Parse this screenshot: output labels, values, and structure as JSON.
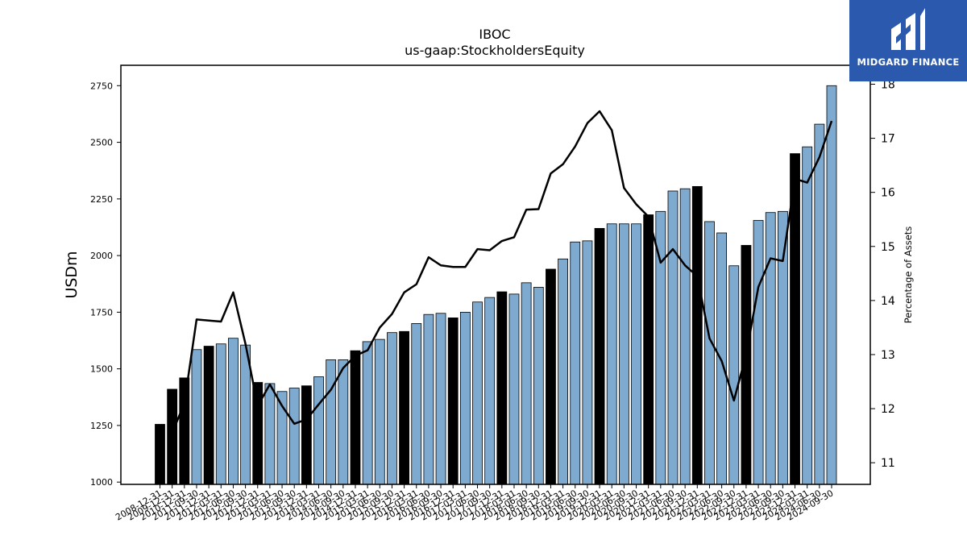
{
  "chart_data": {
    "type": "bar",
    "title": "IBOC",
    "subtitle": "us-gaap:StockholdersEquity",
    "ylabel": "USDm",
    "y2label": "Percentage of Assets",
    "ylim": [
      990,
      2840
    ],
    "y2lim": [
      10.6,
      18.35
    ],
    "yticks": [
      1000,
      1250,
      1500,
      1750,
      2000,
      2250,
      2500,
      2750
    ],
    "y2ticks": [
      11,
      12,
      13,
      14,
      15,
      16,
      17,
      18
    ],
    "colors": {
      "bar": "#7eaad0",
      "bar_highlight": "#000000",
      "line": "#000000",
      "edge": "#000000"
    },
    "series": [
      {
        "kind": "bar",
        "x": [
          "2008-12-31",
          "2009-12-31",
          "2010-12-31",
          "2011-09-30",
          "2011-12-31",
          "2012-03-31",
          "2012-06-30",
          "2012-09-30",
          "2012-12-31",
          "2013-03-31",
          "2013-06-30",
          "2013-09-30",
          "2013-12-31",
          "2014-03-31",
          "2014-06-30",
          "2014-09-30",
          "2014-12-31",
          "2015-03-31",
          "2015-06-30",
          "2015-09-30",
          "2015-12-31",
          "2016-03-31",
          "2016-06-30",
          "2016-09-30",
          "2016-12-31",
          "2017-03-31",
          "2017-06-30",
          "2017-09-30",
          "2017-12-31",
          "2018-03-31",
          "2018-06-30",
          "2018-09-30",
          "2018-12-31",
          "2019-03-31",
          "2019-06-30",
          "2019-09-30",
          "2019-12-31",
          "2020-03-31",
          "2020-06-30",
          "2020-09-30",
          "2020-12-31",
          "2021-03-31",
          "2021-06-30",
          "2021-09-30",
          "2021-12-31",
          "2022-03-31",
          "2022-06-30",
          "2022-09-30",
          "2022-12-31",
          "2023-03-31",
          "2023-06-30",
          "2023-09-30",
          "2023-12-31",
          "2024-03-31",
          "2024-06-30",
          "2024-09-30"
        ],
        "values": [
          1255,
          1410,
          1460,
          1585,
          1600,
          1610,
          1635,
          1605,
          1440,
          1435,
          1400,
          1415,
          1425,
          1465,
          1540,
          1540,
          1580,
          1620,
          1630,
          1660,
          1665,
          1700,
          1740,
          1745,
          1725,
          1750,
          1795,
          1815,
          1840,
          1830,
          1880,
          1860,
          1940,
          1985,
          2060,
          2065,
          2120,
          2140,
          2140,
          2140,
          2180,
          2195,
          2285,
          2295,
          2305,
          2150,
          2100,
          1955,
          2045,
          2155,
          2190,
          2195,
          2450,
          2480,
          2580,
          2750
        ],
        "highlight": [
          true,
          true,
          true,
          false,
          true,
          false,
          false,
          false,
          true,
          false,
          false,
          false,
          true,
          false,
          false,
          false,
          true,
          false,
          false,
          false,
          true,
          false,
          false,
          false,
          true,
          false,
          false,
          false,
          true,
          false,
          false,
          false,
          true,
          false,
          false,
          false,
          true,
          false,
          false,
          false,
          true,
          false,
          false,
          false,
          true,
          false,
          false,
          false,
          true,
          false,
          false,
          false,
          true,
          false,
          false,
          false
        ]
      },
      {
        "kind": "line",
        "axis": "right",
        "x": [
          "2009-12-31",
          "2010-12-31",
          "2011-09-30",
          "2011-12-31",
          "2012-03-31",
          "2012-06-30",
          "2012-09-30",
          "2012-12-31",
          "2013-03-31",
          "2013-06-30",
          "2013-09-30",
          "2013-12-31",
          "2014-03-31",
          "2014-06-30",
          "2014-09-30",
          "2014-12-31",
          "2015-03-31",
          "2015-06-30",
          "2015-09-30",
          "2015-12-31",
          "2016-03-31",
          "2016-06-30",
          "2016-09-30",
          "2016-12-31",
          "2017-03-31",
          "2017-06-30",
          "2017-09-30",
          "2017-12-31",
          "2018-03-31",
          "2018-06-30",
          "2018-09-30",
          "2018-12-31",
          "2019-03-31",
          "2019-06-30",
          "2019-09-30",
          "2019-12-31",
          "2020-03-31",
          "2020-06-30",
          "2020-09-30",
          "2020-12-31",
          "2021-03-31",
          "2021-06-30",
          "2021-09-30",
          "2021-12-31",
          "2022-03-31",
          "2022-06-30",
          "2022-09-30",
          "2022-12-31",
          "2023-03-31",
          "2023-06-30",
          "2023-09-30",
          "2023-12-31",
          "2024-03-31",
          "2024-06-30",
          "2024-09-30"
        ],
        "values": [
          11.55,
          12.1,
          13.65,
          13.63,
          13.61,
          14.15,
          13.2,
          12.05,
          12.45,
          12.05,
          11.72,
          11.8,
          12.08,
          12.35,
          12.75,
          12.98,
          13.08,
          13.5,
          13.75,
          14.15,
          14.3,
          14.8,
          14.65,
          14.62,
          14.62,
          14.95,
          14.93,
          15.1,
          15.17,
          15.68,
          15.69,
          16.35,
          16.52,
          16.85,
          17.28,
          17.5,
          17.15,
          16.08,
          15.78,
          15.55,
          14.7,
          14.95,
          14.65,
          14.45,
          13.3,
          12.88,
          12.15,
          13.0,
          14.25,
          14.78,
          14.73,
          16.25,
          16.18,
          16.65,
          17.32
        ]
      }
    ]
  },
  "branding": {
    "logo_text": "MIDGARD FINANCE",
    "logo_bg": "#2a59ad"
  }
}
